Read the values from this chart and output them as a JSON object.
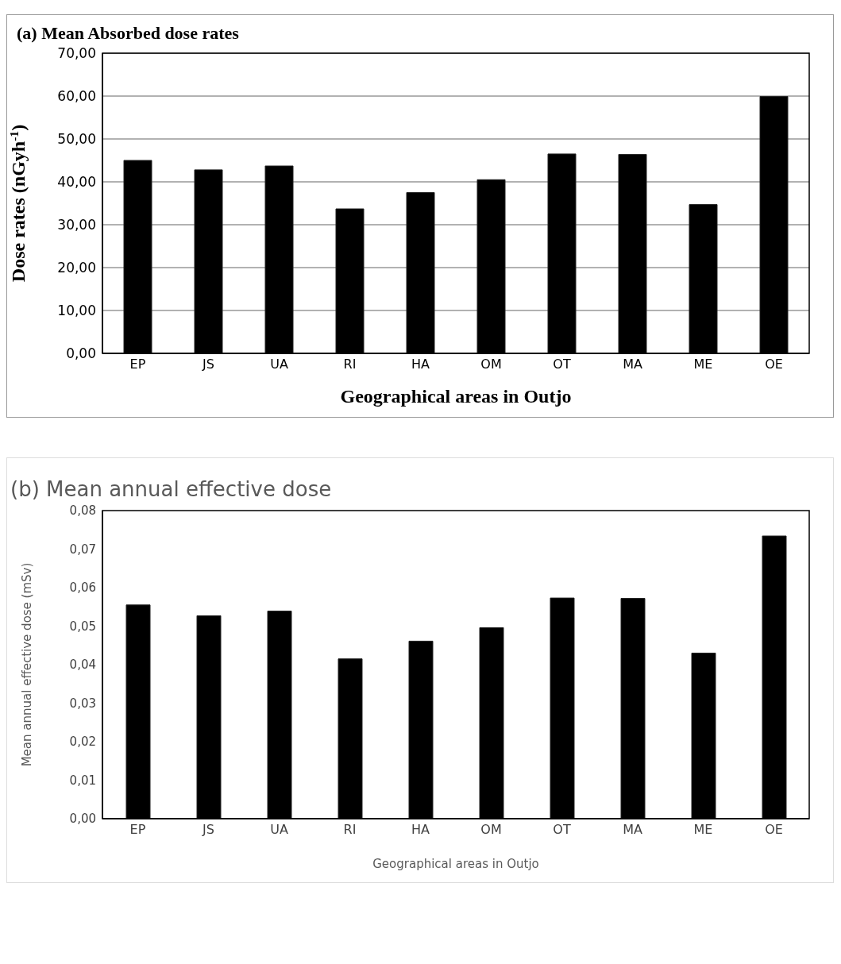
{
  "chart_data": [
    {
      "type": "bar",
      "title": "(a) Mean Absorbed dose rates",
      "xlabel": "Geographical areas in Outjo",
      "ylabel": "Dose rates (nGyh$^{-1}$)",
      "categories": [
        "EP",
        "JS",
        "UA",
        "RI",
        "HA",
        "OM",
        "OT",
        "MA",
        "ME",
        "OE"
      ],
      "values": [
        45.0,
        42.8,
        43.7,
        33.7,
        37.5,
        40.5,
        46.5,
        46.4,
        34.7,
        59.9
      ],
      "color": "#000000",
      "ylim": [
        0,
        70
      ],
      "yticks": [
        {
          "value": 0,
          "label": "0,00"
        },
        {
          "value": 10,
          "label": "10,00"
        },
        {
          "value": 20,
          "label": "20,00"
        },
        {
          "value": 30,
          "label": "30,00"
        },
        {
          "value": 40,
          "label": "40,00"
        },
        {
          "value": 50,
          "label": "50,00"
        },
        {
          "value": 60,
          "label": "60,00"
        },
        {
          "value": 70,
          "label": "70,00"
        }
      ],
      "grid": "y"
    },
    {
      "type": "bar",
      "title": "(b) Mean annual effective dose",
      "xlabel": "Geographical areas in Outjo",
      "ylabel": "Mean annual effective dose (mSv)",
      "categories": [
        "EP",
        "JS",
        "UA",
        "RI",
        "HA",
        "OM",
        "OT",
        "MA",
        "ME",
        "OE"
      ],
      "values": [
        0.0555,
        0.0527,
        0.0539,
        0.0415,
        0.0461,
        0.0496,
        0.0573,
        0.0572,
        0.043,
        0.0734
      ],
      "color": "#000000",
      "ylim": [
        0,
        0.08
      ],
      "yticks": [
        {
          "value": 0,
          "label": "0,00"
        },
        {
          "value": 0.01,
          "label": "0,01"
        },
        {
          "value": 0.02,
          "label": "0,02"
        },
        {
          "value": 0.03,
          "label": "0,03"
        },
        {
          "value": 0.04,
          "label": "0,04"
        },
        {
          "value": 0.05,
          "label": "0,05"
        },
        {
          "value": 0.06,
          "label": "0,06"
        },
        {
          "value": 0.07,
          "label": "0,07"
        },
        {
          "value": 0.08,
          "label": "0,08"
        }
      ]
    }
  ]
}
